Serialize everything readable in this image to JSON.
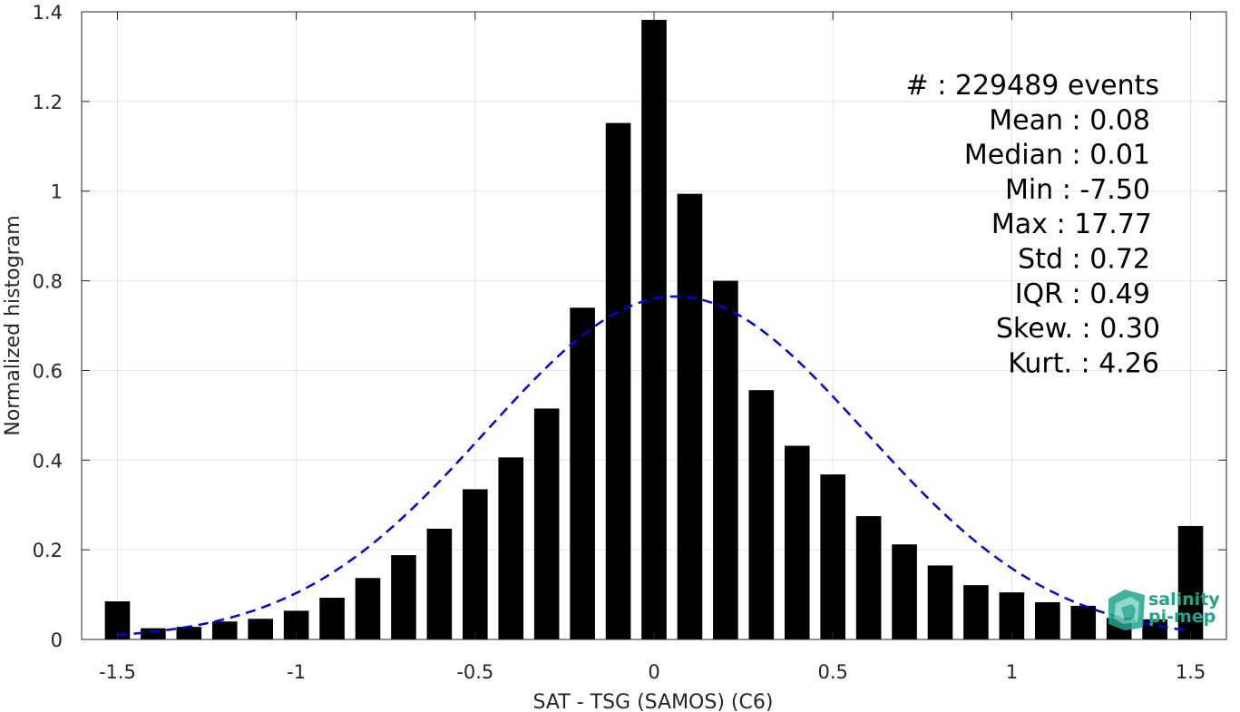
{
  "chart_data": {
    "type": "bar",
    "xlabel": "SAT - TSG (SAMOS) (C6)",
    "ylabel": "Normalized histogram",
    "xlim": [
      -1.6,
      1.6
    ],
    "ylim": [
      0,
      1.4
    ],
    "xticks": [
      -1.5,
      -1,
      -0.5,
      0,
      0.5,
      1,
      1.5
    ],
    "xtick_labels": [
      "-1.5",
      "-1",
      "-0.5",
      "0",
      "0.5",
      "1",
      "1.5"
    ],
    "yticks": [
      0,
      0.2,
      0.4,
      0.6,
      0.8,
      1,
      1.2,
      1.4
    ],
    "ytick_labels": [
      "0",
      "0.2",
      "0.4",
      "0.6",
      "0.8",
      "1",
      "1.2",
      "1.4"
    ],
    "grid": true,
    "bar_color": "#000000",
    "bin_centers": [
      -1.5,
      -1.4,
      -1.3,
      -1.2,
      -1.1,
      -1.0,
      -0.9,
      -0.8,
      -0.7,
      -0.6,
      -0.5,
      -0.4,
      -0.3,
      -0.2,
      -0.1,
      0.0,
      0.1,
      0.2,
      0.3,
      0.4,
      0.5,
      0.6,
      0.7,
      0.8,
      0.9,
      1.0,
      1.1,
      1.2,
      1.3,
      1.4,
      1.5
    ],
    "values": [
      0.085,
      0.025,
      0.028,
      0.04,
      0.046,
      0.064,
      0.093,
      0.137,
      0.188,
      0.247,
      0.335,
      0.406,
      0.515,
      0.74,
      1.152,
      1.382,
      0.994,
      0.8,
      0.556,
      0.432,
      0.368,
      0.275,
      0.212,
      0.165,
      0.121,
      0.105,
      0.083,
      0.075,
      0.048,
      0.045,
      0.253
    ],
    "fit_curve": {
      "style": "dashed",
      "color": "#0000e0",
      "mean": 0.06,
      "std": 0.53,
      "peak": 0.765,
      "x_range": [
        -1.5,
        1.5
      ]
    },
    "stats": [
      {
        "label": "#  : 229489 events"
      },
      {
        "label": "Mean : 0.08"
      },
      {
        "label": "Median : 0.01"
      },
      {
        "label": "Min : -7.50"
      },
      {
        "label": "Max : 17.77"
      },
      {
        "label": "Std : 0.72"
      },
      {
        "label": "IQR : 0.49"
      },
      {
        "label": "Skew. : 0.30"
      },
      {
        "label": "Kurt. : 4.26"
      }
    ]
  },
  "logo": {
    "line1": "salinity",
    "line2": "pi-mep",
    "color": "#1fa58c",
    "icon": "pi-mep-logo-icon"
  }
}
